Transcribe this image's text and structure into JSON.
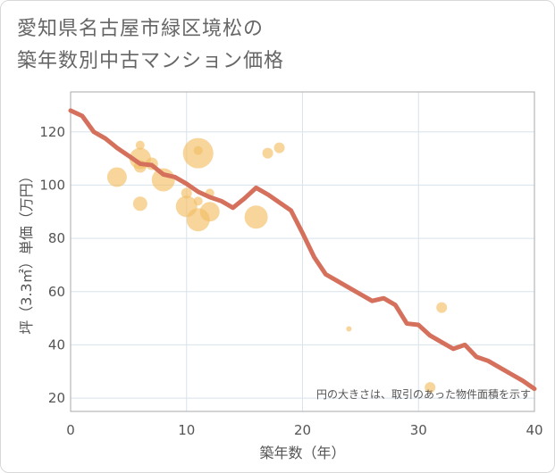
{
  "title_line1": "愛知県名古屋市緑区境松の",
  "title_line2": "築年数別中古マンション価格",
  "colors": {
    "line": "#d4705c",
    "bubble": "#f2bf65",
    "grid": "#d8e3ec",
    "plot_border": "#aaaaaa",
    "text": "#555555"
  },
  "chart_data": {
    "type": "scatter",
    "title": "愛知県名古屋市緑区境松の築年数別中古マンション価格",
    "xlabel": "築年数（年）",
    "ylabel": "坪（3.3㎡）単価（万円）",
    "xlim": [
      0,
      40
    ],
    "ylim": [
      15,
      135
    ],
    "x_ticks": [
      0,
      10,
      20,
      30,
      40
    ],
    "y_ticks": [
      20,
      40,
      60,
      80,
      100,
      120
    ],
    "grid": true,
    "note": "円の大きさは、取引のあった物件面積を示す",
    "trend_line": {
      "x": [
        0,
        1,
        2,
        3,
        4,
        5,
        6,
        7,
        8,
        9,
        10,
        11,
        12,
        13,
        14,
        15,
        16,
        17,
        18,
        19,
        20,
        21,
        22,
        23,
        24,
        25,
        26,
        27,
        28,
        29,
        30,
        31,
        32,
        33,
        34,
        35,
        36,
        37,
        38,
        39,
        40
      ],
      "y": [
        128,
        126,
        120,
        117.5,
        114,
        111,
        108,
        107.5,
        104,
        103,
        100.5,
        97.5,
        95.5,
        94,
        91.5,
        95,
        99,
        96.5,
        93.5,
        90.5,
        82,
        73,
        66.5,
        64,
        61.5,
        59,
        56.5,
        57.5,
        55,
        48,
        47.5,
        43.5,
        41,
        38.5,
        40,
        35.5,
        34,
        31.5,
        29,
        26.5,
        23.5
      ]
    },
    "bubbles": [
      {
        "x": 4,
        "y": 103,
        "size": 11
      },
      {
        "x": 6,
        "y": 115,
        "size": 5
      },
      {
        "x": 6,
        "y": 110,
        "size": 12
      },
      {
        "x": 6,
        "y": 107,
        "size": 7
      },
      {
        "x": 6,
        "y": 93,
        "size": 8
      },
      {
        "x": 7,
        "y": 108,
        "size": 7
      },
      {
        "x": 8,
        "y": 102,
        "size": 13
      },
      {
        "x": 10,
        "y": 97,
        "size": 6
      },
      {
        "x": 10,
        "y": 92,
        "size": 12
      },
      {
        "x": 11,
        "y": 112,
        "size": 17
      },
      {
        "x": 11,
        "y": 113,
        "size": 5
      },
      {
        "x": 11,
        "y": 94,
        "size": 5
      },
      {
        "x": 11,
        "y": 87,
        "size": 13
      },
      {
        "x": 12,
        "y": 97,
        "size": 5
      },
      {
        "x": 12,
        "y": 90,
        "size": 11
      },
      {
        "x": 16,
        "y": 88,
        "size": 13
      },
      {
        "x": 17,
        "y": 112,
        "size": 6
      },
      {
        "x": 18,
        "y": 114,
        "size": 6
      },
      {
        "x": 24,
        "y": 46,
        "size": 3
      },
      {
        "x": 31,
        "y": 24,
        "size": 6
      },
      {
        "x": 32,
        "y": 54,
        "size": 6
      }
    ]
  }
}
